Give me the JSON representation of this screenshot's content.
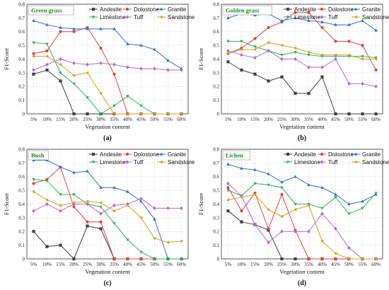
{
  "chart_data": [
    {
      "type": "line",
      "title": "Green grass",
      "caption": "(a)",
      "xlabel": "Vegetation content",
      "ylabel": "F1-Score",
      "ylim": [
        0,
        0.8
      ],
      "yticks": [
        "0",
        "0.1",
        "0.2",
        "0.3",
        "0.4",
        "0.5",
        "0.6",
        "0.7",
        "0.8"
      ],
      "categories": [
        "5%",
        "10%",
        "15%",
        "20%",
        "25%",
        "30%",
        "35%",
        "40%",
        "45%",
        "50%",
        "55%",
        "60%"
      ],
      "series": [
        {
          "name": "Andesite",
          "values": [
            0.29,
            0.32,
            0.24,
            0.0,
            0.0,
            0.0,
            0.0,
            0.0,
            0.0,
            0.0,
            0.0,
            0.0
          ]
        },
        {
          "name": "Dolostone",
          "values": [
            0.44,
            0.46,
            0.6,
            0.6,
            0.63,
            0.48,
            0.29,
            0.0,
            0.0,
            0.0,
            0.0,
            0.0
          ]
        },
        {
          "name": "Granite",
          "values": [
            0.68,
            0.65,
            0.63,
            0.62,
            0.62,
            0.62,
            0.62,
            0.51,
            0.5,
            0.47,
            0.39,
            0.33
          ]
        },
        {
          "name": "Limestone",
          "values": [
            0.52,
            0.51,
            0.3,
            0.22,
            0.12,
            0.0,
            0.06,
            0.13,
            0.06,
            0.0,
            0.0,
            0.0
          ]
        },
        {
          "name": "Tuff",
          "values": [
            0.32,
            0.36,
            0.4,
            0.37,
            0.36,
            0.37,
            0.36,
            0.34,
            0.33,
            0.33,
            0.32,
            0.32
          ]
        },
        {
          "name": "Sandstone",
          "values": [
            0.42,
            0.42,
            0.36,
            0.28,
            0.3,
            0.15,
            0.0,
            0.0,
            0.0,
            0.0,
            0.0,
            0.0
          ]
        }
      ]
    },
    {
      "type": "line",
      "title": "Golden grass",
      "caption": "(b)",
      "xlabel": "Vegetation content",
      "ylabel": "F1-Score",
      "ylim": [
        0,
        0.8
      ],
      "yticks": [
        "0",
        "0.1",
        "0.2",
        "0.3",
        "0.4",
        "0.5",
        "0.6",
        "0.7",
        "0.8"
      ],
      "categories": [
        "5%",
        "10%",
        "15%",
        "20%",
        "25%",
        "30%",
        "35%",
        "40%",
        "45%",
        "50%",
        "55%",
        "60%"
      ],
      "series": [
        {
          "name": "Andesite",
          "values": [
            0.38,
            0.32,
            0.29,
            0.24,
            0.27,
            0.15,
            0.15,
            0.27,
            0.0,
            0.0,
            0.0,
            0.0
          ]
        },
        {
          "name": "Dolostone",
          "values": [
            0.44,
            0.48,
            0.55,
            0.63,
            0.67,
            0.74,
            0.74,
            0.63,
            0.53,
            0.53,
            0.5,
            0.32
          ]
        },
        {
          "name": "Granite",
          "values": [
            0.7,
            0.73,
            0.72,
            0.73,
            0.68,
            0.7,
            0.68,
            0.67,
            0.65,
            0.65,
            0.68,
            0.61
          ]
        },
        {
          "name": "Limestone",
          "values": [
            0.53,
            0.53,
            0.49,
            0.46,
            0.43,
            0.45,
            0.43,
            0.42,
            0.42,
            0.42,
            0.42,
            0.41
          ]
        },
        {
          "name": "Tuff",
          "values": [
            0.46,
            0.43,
            0.41,
            0.46,
            0.4,
            0.4,
            0.34,
            0.34,
            0.4,
            0.22,
            0.22,
            0.2
          ]
        },
        {
          "name": "Sandstone",
          "values": [
            0.44,
            0.47,
            0.47,
            0.52,
            0.5,
            0.48,
            0.45,
            0.43,
            0.43,
            0.43,
            0.4,
            0.4
          ]
        }
      ]
    },
    {
      "type": "line",
      "title": "Bush",
      "caption": "(c)",
      "xlabel": "Vegetation content",
      "ylabel": "F1-Score",
      "ylim": [
        0,
        0.8
      ],
      "yticks": [
        "0",
        "0.1",
        "0.2",
        "0.3",
        "0.4",
        "0.5",
        "0.6",
        "0.7",
        "0.8"
      ],
      "categories": [
        "5%",
        "10%",
        "15%",
        "20%",
        "25%",
        "30%",
        "35%",
        "40%",
        "45%",
        "50%",
        "55%",
        "60%"
      ],
      "series": [
        {
          "name": "Andesite",
          "values": [
            0.2,
            0.09,
            0.1,
            0.0,
            0.24,
            0.22,
            0.0,
            0.0,
            0.0,
            0.0,
            0.0,
            0.0
          ]
        },
        {
          "name": "Dolostone",
          "values": [
            0.55,
            0.58,
            0.67,
            0.38,
            0.27,
            0.27,
            0.0,
            0.0,
            0.0,
            0.0,
            0.0,
            0.0
          ]
        },
        {
          "name": "Granite",
          "values": [
            0.72,
            0.72,
            0.67,
            0.63,
            0.64,
            0.52,
            0.52,
            0.49,
            0.42,
            0.29,
            0.0,
            0.0
          ]
        },
        {
          "name": "Limestone",
          "values": [
            0.58,
            0.57,
            0.47,
            0.47,
            0.4,
            0.38,
            0.26,
            0.14,
            0.05,
            0.0,
            0.0,
            0.0
          ]
        },
        {
          "name": "Tuff",
          "values": [
            0.35,
            0.4,
            0.35,
            0.4,
            0.4,
            0.33,
            0.39,
            0.4,
            0.44,
            0.37,
            0.37,
            0.37
          ]
        },
        {
          "name": "Sandstone",
          "values": [
            0.49,
            0.43,
            0.39,
            0.41,
            0.42,
            0.41,
            0.35,
            0.39,
            0.3,
            0.15,
            0.12,
            0.13
          ]
        }
      ]
    },
    {
      "type": "line",
      "title": "Lichen",
      "caption": "(d)",
      "xlabel": "Vegetation content",
      "ylabel": "F1-Score",
      "ylim": [
        0,
        0.8
      ],
      "yticks": [
        "0",
        "0.1",
        "0.2",
        "0.3",
        "0.4",
        "0.5",
        "0.6",
        "0.7",
        "0.8"
      ],
      "categories": [
        "5%",
        "10%",
        "15%",
        "20%",
        "25%",
        "30%",
        "35%",
        "40%",
        "45%",
        "50%",
        "55%",
        "60%"
      ],
      "series": [
        {
          "name": "Andesite",
          "values": [
            0.35,
            0.27,
            0.25,
            0.21,
            0.0,
            0.0,
            0.0,
            0.0,
            0.0,
            0.0,
            0.0,
            0.0
          ]
        },
        {
          "name": "Dolostone",
          "values": [
            0.52,
            0.35,
            0.48,
            0.22,
            0.47,
            0.21,
            0.0,
            0.0,
            0.0,
            0.0,
            0.0,
            0.0
          ]
        },
        {
          "name": "Granite",
          "values": [
            0.69,
            0.66,
            0.65,
            0.62,
            0.56,
            0.6,
            0.54,
            0.52,
            0.47,
            0.4,
            0.42,
            0.47
          ]
        },
        {
          "name": "Limestone",
          "values": [
            0.5,
            0.46,
            0.55,
            0.54,
            0.52,
            0.4,
            0.4,
            0.37,
            0.45,
            0.33,
            0.37,
            0.48
          ]
        },
        {
          "name": "Tuff",
          "values": [
            0.55,
            0.46,
            0.25,
            0.12,
            0.2,
            0.2,
            0.2,
            0.33,
            0.22,
            0.08,
            0.0,
            0.0
          ]
        },
        {
          "name": "Sandstone",
          "values": [
            0.43,
            0.45,
            0.47,
            0.36,
            0.31,
            0.36,
            0.39,
            0.13,
            0.04,
            0.0,
            0.0,
            0.0
          ]
        }
      ]
    }
  ],
  "legend": {
    "placement": "top-right",
    "entries": [
      {
        "name": "Andesite",
        "color": "#404040",
        "marker": "square"
      },
      {
        "name": "Dolostone",
        "color": "#e8403a",
        "marker": "circle"
      },
      {
        "name": "Granite",
        "color": "#2f6fd0",
        "marker": "triangle-up"
      },
      {
        "name": "Limestone",
        "color": "#2fb35a",
        "marker": "triangle-down"
      },
      {
        "name": "Tuff",
        "color": "#b06ad8",
        "marker": "diamond"
      },
      {
        "name": "Sandstone",
        "color": "#d4a017",
        "marker": "triangle-left"
      }
    ]
  },
  "colors": {
    "title_text": "#1a8a1a",
    "grid": "#cfcfcf",
    "axis": "#333333"
  }
}
